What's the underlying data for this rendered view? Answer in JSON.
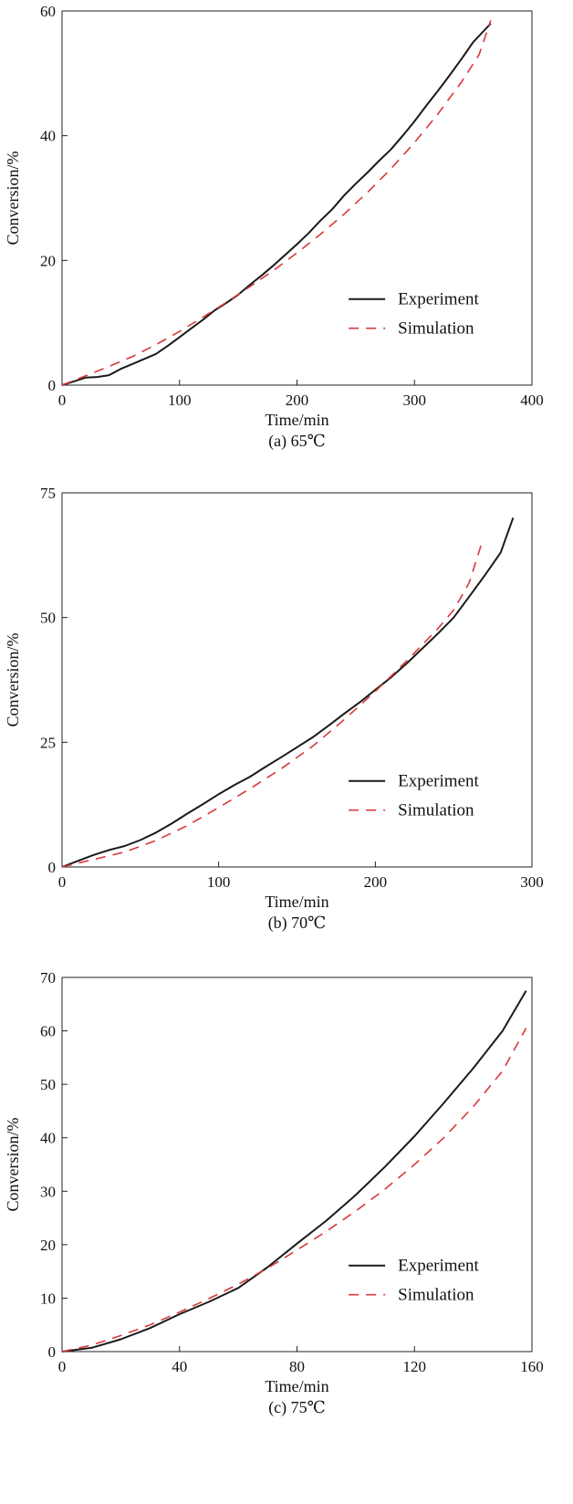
{
  "colors": {
    "experiment": "#1a1a1a",
    "simulation": "#d9383a",
    "axis": "#222222"
  },
  "chart_data": [
    {
      "type": "line",
      "caption": "(a) 65℃",
      "xlabel": "Time/min",
      "ylabel": "Conversion/%",
      "xlim": [
        0,
        400
      ],
      "ylim": [
        0,
        60
      ],
      "xticks": [
        "0",
        "100",
        "200",
        "300",
        "400"
      ],
      "yticks": [
        "0",
        "20",
        "40",
        "60"
      ],
      "xtick_values": [
        0,
        100,
        200,
        300,
        400
      ],
      "ytick_values": [
        0,
        20,
        40,
        60
      ],
      "legend": {
        "position": "bottom-right",
        "entries": [
          "Experiment",
          "Simulation"
        ]
      },
      "series": [
        {
          "name": "Experiment",
          "style": "solid",
          "x": [
            0,
            10,
            20,
            30,
            40,
            50,
            60,
            70,
            80,
            90,
            100,
            110,
            120,
            130,
            140,
            150,
            160,
            170,
            180,
            190,
            200,
            210,
            220,
            230,
            240,
            250,
            260,
            270,
            280,
            290,
            300,
            310,
            320,
            330,
            340,
            350,
            360,
            365
          ],
          "y": [
            0,
            0.6,
            1.2,
            1.3,
            1.6,
            2.6,
            3.4,
            4.2,
            5.0,
            6.3,
            7.7,
            9.1,
            10.5,
            12.0,
            13.2,
            14.5,
            16.1,
            17.6,
            19.2,
            20.9,
            22.6,
            24.4,
            26.4,
            28.2,
            30.4,
            32.3,
            34.1,
            36.0,
            37.8,
            40.0,
            42.3,
            44.8,
            47.2,
            49.7,
            52.3,
            55.0,
            57.0,
            58.0
          ]
        },
        {
          "name": "Simulation",
          "style": "dashed",
          "x": [
            0,
            20,
            40,
            60,
            80,
            100,
            120,
            140,
            160,
            180,
            200,
            220,
            240,
            260,
            280,
            300,
            320,
            340,
            355,
            365
          ],
          "y": [
            0,
            1.5,
            3.0,
            4.6,
            6.5,
            8.6,
            10.9,
            13.3,
            15.8,
            18.4,
            21.2,
            24.2,
            27.4,
            30.9,
            34.7,
            38.9,
            43.5,
            48.6,
            53.0,
            58.5
          ]
        }
      ]
    },
    {
      "type": "line",
      "caption": "(b) 70℃",
      "xlabel": "Time/min",
      "ylabel": "Conversion/%",
      "xlim": [
        0,
        300
      ],
      "ylim": [
        0,
        75
      ],
      "xticks": [
        "0",
        "100",
        "200",
        "300"
      ],
      "yticks": [
        "0",
        "25",
        "50",
        "75"
      ],
      "xtick_values": [
        0,
        100,
        200,
        300
      ],
      "ytick_values": [
        0,
        25,
        50,
        75
      ],
      "legend": {
        "position": "bottom-right",
        "entries": [
          "Experiment",
          "Simulation"
        ]
      },
      "series": [
        {
          "name": "Experiment",
          "style": "solid",
          "x": [
            0,
            10,
            20,
            30,
            40,
            50,
            60,
            70,
            80,
            90,
            100,
            110,
            120,
            130,
            140,
            150,
            160,
            170,
            180,
            190,
            200,
            210,
            220,
            230,
            240,
            250,
            260,
            270,
            280,
            288
          ],
          "y": [
            0,
            1.2,
            2.4,
            3.4,
            4.2,
            5.4,
            6.9,
            8.7,
            10.7,
            12.6,
            14.6,
            16.4,
            18.1,
            20.1,
            22.0,
            24.0,
            26.0,
            28.3,
            30.7,
            33.0,
            35.5,
            38.0,
            40.8,
            43.8,
            46.8,
            50.0,
            54.2,
            58.5,
            63.0,
            70.0
          ]
        },
        {
          "name": "Simulation",
          "style": "dashed",
          "x": [
            0,
            20,
            40,
            60,
            80,
            100,
            120,
            140,
            160,
            180,
            200,
            220,
            240,
            250,
            260,
            268
          ],
          "y": [
            0,
            1.5,
            3.0,
            5.3,
            8.3,
            11.9,
            15.7,
            19.7,
            24.2,
            29.5,
            35.2,
            41.3,
            47.8,
            51.5,
            57.0,
            65.0
          ]
        }
      ]
    },
    {
      "type": "line",
      "caption": "(c) 75℃",
      "xlabel": "Time/min",
      "ylabel": "Conversion/%",
      "xlim": [
        0,
        160
      ],
      "ylim": [
        0,
        70
      ],
      "xticks": [
        "0",
        "40",
        "80",
        "120",
        "160"
      ],
      "yticks": [
        "0",
        "10",
        "20",
        "30",
        "40",
        "50",
        "60",
        "70"
      ],
      "xtick_values": [
        0,
        40,
        80,
        120,
        160
      ],
      "ytick_values": [
        0,
        10,
        20,
        30,
        40,
        50,
        60,
        70
      ],
      "legend": {
        "position": "bottom-right",
        "entries": [
          "Experiment",
          "Simulation"
        ]
      },
      "series": [
        {
          "name": "Experiment",
          "style": "solid",
          "x": [
            0,
            10,
            20,
            30,
            40,
            50,
            60,
            70,
            80,
            90,
            100,
            110,
            120,
            130,
            140,
            150,
            158
          ],
          "y": [
            0,
            0.7,
            2.3,
            4.4,
            7.0,
            9.3,
            11.9,
            15.8,
            20.2,
            24.5,
            29.3,
            34.6,
            40.3,
            46.5,
            53.0,
            60.0,
            67.5
          ]
        },
        {
          "name": "Simulation",
          "style": "dashed",
          "x": [
            0,
            10,
            20,
            30,
            40,
            50,
            60,
            70,
            80,
            90,
            100,
            110,
            120,
            130,
            140,
            150,
            158
          ],
          "y": [
            0,
            1.2,
            3.0,
            5.0,
            7.4,
            9.9,
            12.6,
            15.6,
            19.0,
            22.5,
            26.3,
            30.4,
            35.0,
            40.0,
            45.8,
            52.5,
            60.5
          ]
        }
      ]
    }
  ]
}
